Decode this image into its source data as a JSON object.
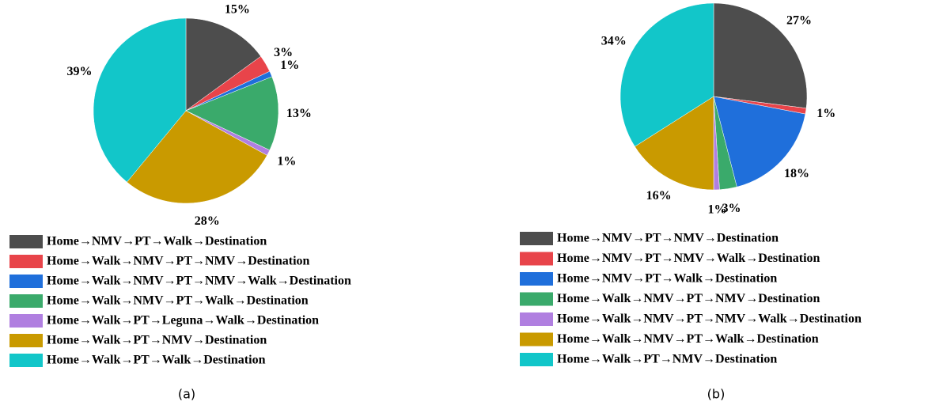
{
  "chart_data": [
    {
      "type": "pie",
      "caption": "(a)",
      "categories": [
        "Home→NMV→PT→Walk→Destination",
        "Home→Walk→NMV→PT→NMV→Destination",
        "Home→Walk→NMV→PT→NMV→Walk→Destination",
        "Home→Walk→NMV→PT→Walk→Destination",
        "Home→Walk→PT→Leguna→Walk→Destination",
        "Home→Walk→PT→NMV→Destination",
        "Home→Walk→PT→Walk→Destination"
      ],
      "values": [
        15,
        3,
        1,
        13,
        1,
        28,
        39
      ],
      "value_labels": [
        "15%",
        "3%",
        "1%",
        "13%",
        "1%",
        "28%",
        "39%"
      ],
      "colors": [
        "#4d4d4d",
        "#e8444a",
        "#1f6fdb",
        "#3aaa6b",
        "#b07fe0",
        "#c99a00",
        "#12c6c9"
      ]
    },
    {
      "type": "pie",
      "caption": "(b)",
      "categories": [
        "Home→NMV→PT→NMV→Destination",
        "Home→NMV→PT→NMV→Walk→Destination",
        "Home→NMV→PT→Walk→Destination",
        "Home→Walk→NMV→PT→NMV→Destination",
        "Home→Walk→NMV→PT→NMV→Walk→Destination",
        "Home→Walk→NMV→PT→Walk→Destination",
        "Home→Walk→PT→NMV→Destination"
      ],
      "values": [
        27,
        1,
        18,
        3,
        1,
        16,
        34
      ],
      "value_labels": [
        "27%",
        "1%",
        "18%",
        "3%",
        "1%",
        "16%",
        "34%"
      ],
      "colors": [
        "#4d4d4d",
        "#e8444a",
        "#1f6fdb",
        "#3aaa6b",
        "#b07fe0",
        "#c99a00",
        "#12c6c9"
      ]
    }
  ]
}
